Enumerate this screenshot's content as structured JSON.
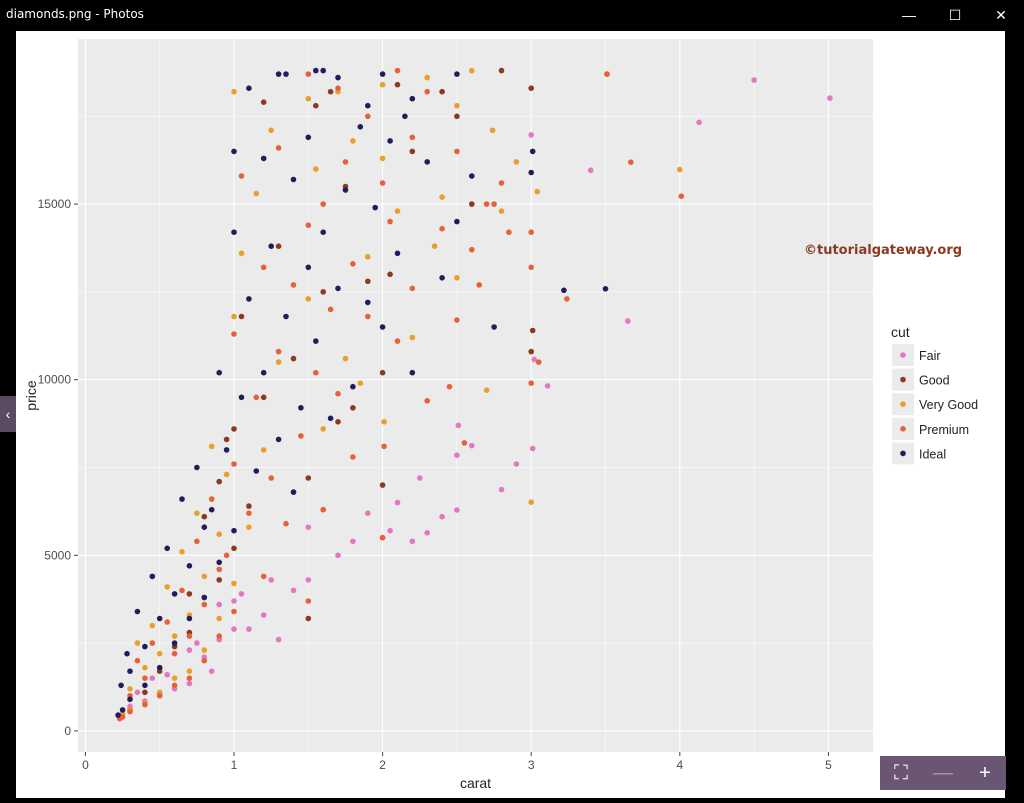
{
  "window": {
    "title": "diamonds.png - Photos",
    "min_glyph": "—",
    "max_glyph": "☐",
    "close_glyph": "✕"
  },
  "nav": {
    "prev_glyph": "‹"
  },
  "viewer": {
    "fit_glyph": "⛶",
    "zoom_out_glyph": "—",
    "zoom_in_glyph": "+"
  },
  "watermark": "©tutorialgateway.org",
  "colors": {
    "panel_bg": "#EBEBEB",
    "grid": "#FFFFFF",
    "Fair": "#E377C2",
    "Good": "#8B3A1E",
    "Very Good": "#E8A02A",
    "Premium": "#E8603A",
    "Ideal": "#221C5E",
    "watermark": "#8B3A1E"
  },
  "chart_data": {
    "type": "scatter",
    "title": "",
    "xlabel": "carat",
    "ylabel": "price",
    "xlim": [
      -0.05,
      5.3
    ],
    "ylim": [
      -600,
      19700
    ],
    "xticks": [
      0,
      1,
      2,
      3,
      4,
      5
    ],
    "xtick_labels": [
      "0",
      "1",
      "2",
      "3",
      "4",
      "5"
    ],
    "yticks": [
      0,
      5000,
      10000,
      15000
    ],
    "ytick_labels": [
      "0",
      "5000",
      "10000",
      "15000"
    ],
    "grid": true,
    "legend": {
      "title": "cut",
      "position": "right",
      "entries": [
        "Fair",
        "Good",
        "Very Good",
        "Premium",
        "Ideal"
      ]
    },
    "series": [
      {
        "name": "Fair",
        "points": [
          [
            5.01,
            18018
          ],
          [
            4.5,
            18531
          ],
          [
            4.13,
            17329
          ],
          [
            3.65,
            11668
          ],
          [
            3.4,
            15964
          ],
          [
            3.11,
            9823
          ],
          [
            3.02,
            10577
          ],
          [
            3.01,
            8040
          ],
          [
            3.0,
            16970
          ],
          [
            2.8,
            6870
          ],
          [
            2.6,
            8120
          ],
          [
            2.5,
            7850
          ],
          [
            2.51,
            8700
          ],
          [
            2.5,
            6290
          ],
          [
            2.3,
            5640
          ],
          [
            2.2,
            5400
          ],
          [
            2.25,
            7200
          ],
          [
            2.1,
            6500
          ],
          [
            2.05,
            5700
          ],
          [
            2.0,
            5500
          ],
          [
            1.9,
            6200
          ],
          [
            1.8,
            5400
          ],
          [
            1.7,
            5000
          ],
          [
            1.6,
            6300
          ],
          [
            1.5,
            4300
          ],
          [
            1.5,
            5800
          ],
          [
            1.4,
            4000
          ],
          [
            1.3,
            2600
          ],
          [
            1.25,
            4300
          ],
          [
            1.2,
            3300
          ],
          [
            1.1,
            2900
          ],
          [
            1.05,
            3900
          ],
          [
            1.0,
            2900
          ],
          [
            1.0,
            3700
          ],
          [
            0.9,
            2600
          ],
          [
            0.9,
            3600
          ],
          [
            0.85,
            1700
          ],
          [
            0.8,
            2100
          ],
          [
            0.75,
            2500
          ],
          [
            0.7,
            1350
          ],
          [
            0.7,
            2300
          ],
          [
            0.6,
            1200
          ],
          [
            0.55,
            1600
          ],
          [
            0.5,
            1050
          ],
          [
            0.45,
            1500
          ],
          [
            0.4,
            850
          ],
          [
            0.35,
            1100
          ],
          [
            0.3,
            700
          ],
          [
            2.9,
            7600
          ],
          [
            2.4,
            6100
          ]
        ]
      },
      {
        "name": "Good",
        "points": [
          [
            3.0,
            18300
          ],
          [
            2.8,
            18800
          ],
          [
            3.01,
            11400
          ],
          [
            3.0,
            10800
          ],
          [
            2.5,
            17500
          ],
          [
            2.4,
            18200
          ],
          [
            2.2,
            16500
          ],
          [
            2.05,
            13000
          ],
          [
            2.0,
            10200
          ],
          [
            2.0,
            7000
          ],
          [
            1.9,
            12800
          ],
          [
            1.8,
            9200
          ],
          [
            1.75,
            15500
          ],
          [
            1.7,
            8800
          ],
          [
            1.6,
            12500
          ],
          [
            1.55,
            17800
          ],
          [
            1.5,
            7200
          ],
          [
            1.5,
            3200
          ],
          [
            1.4,
            10600
          ],
          [
            1.3,
            13800
          ],
          [
            1.2,
            9500
          ],
          [
            1.1,
            6400
          ],
          [
            1.05,
            11800
          ],
          [
            1.0,
            5200
          ],
          [
            1.0,
            8600
          ],
          [
            0.9,
            4300
          ],
          [
            0.9,
            7100
          ],
          [
            0.8,
            3800
          ],
          [
            0.8,
            6100
          ],
          [
            0.7,
            2800
          ],
          [
            0.7,
            3900
          ],
          [
            0.6,
            2400
          ],
          [
            0.5,
            1700
          ],
          [
            0.4,
            1100
          ],
          [
            0.3,
            600
          ],
          [
            1.2,
            17900
          ],
          [
            1.65,
            18200
          ],
          [
            2.1,
            18400
          ],
          [
            2.6,
            15000
          ],
          [
            0.95,
            8300
          ]
        ]
      },
      {
        "name": "Very Good",
        "points": [
          [
            4.0,
            15984
          ],
          [
            3.51,
            18701
          ],
          [
            3.04,
            15354
          ],
          [
            3.0,
            6512
          ],
          [
            2.8,
            14800
          ],
          [
            2.74,
            17100
          ],
          [
            2.5,
            12900
          ],
          [
            2.5,
            17800
          ],
          [
            2.4,
            15200
          ],
          [
            2.3,
            18600
          ],
          [
            2.2,
            11200
          ],
          [
            2.1,
            14800
          ],
          [
            2.01,
            8800
          ],
          [
            2.0,
            16300
          ],
          [
            2.0,
            18400
          ],
          [
            1.9,
            13500
          ],
          [
            1.8,
            16800
          ],
          [
            1.75,
            10600
          ],
          [
            1.7,
            18200
          ],
          [
            1.6,
            8600
          ],
          [
            1.55,
            16000
          ],
          [
            1.5,
            12300
          ],
          [
            1.5,
            18000
          ],
          [
            1.4,
            6800
          ],
          [
            1.3,
            10500
          ],
          [
            1.25,
            17100
          ],
          [
            1.2,
            8000
          ],
          [
            1.1,
            5800
          ],
          [
            1.05,
            13600
          ],
          [
            1.0,
            4200
          ],
          [
            1.0,
            11800
          ],
          [
            1.0,
            18200
          ],
          [
            0.95,
            7300
          ],
          [
            0.9,
            3200
          ],
          [
            0.9,
            5600
          ],
          [
            0.85,
            8100
          ],
          [
            0.8,
            2300
          ],
          [
            0.8,
            4400
          ],
          [
            0.75,
            6200
          ],
          [
            0.7,
            1700
          ],
          [
            0.7,
            3300
          ],
          [
            0.65,
            5100
          ],
          [
            0.6,
            1500
          ],
          [
            0.6,
            2700
          ],
          [
            0.55,
            4100
          ],
          [
            0.5,
            1100
          ],
          [
            0.5,
            2200
          ],
          [
            0.45,
            3000
          ],
          [
            0.4,
            800
          ],
          [
            0.4,
            1800
          ],
          [
            0.35,
            2500
          ],
          [
            0.3,
            600
          ],
          [
            0.3,
            1200
          ],
          [
            0.25,
            500
          ],
          [
            2.9,
            16200
          ],
          [
            2.6,
            18800
          ],
          [
            2.7,
            9700
          ],
          [
            2.35,
            13800
          ],
          [
            1.85,
            9900
          ],
          [
            1.15,
            15300
          ]
        ]
      },
      {
        "name": "Premium",
        "points": [
          [
            4.01,
            15223
          ],
          [
            3.67,
            16193
          ],
          [
            3.51,
            18701
          ],
          [
            3.24,
            12300
          ],
          [
            3.05,
            10500
          ],
          [
            3.0,
            14200
          ],
          [
            3.0,
            9900
          ],
          [
            3.0,
            13200
          ],
          [
            2.8,
            15600
          ],
          [
            2.75,
            15000
          ],
          [
            2.6,
            13700
          ],
          [
            2.5,
            11700
          ],
          [
            2.5,
            16500
          ],
          [
            2.45,
            9800
          ],
          [
            2.4,
            14300
          ],
          [
            2.3,
            18200
          ],
          [
            2.3,
            9400
          ],
          [
            2.2,
            12600
          ],
          [
            2.2,
            16900
          ],
          [
            2.1,
            11100
          ],
          [
            2.1,
            18800
          ],
          [
            2.05,
            14500
          ],
          [
            2.01,
            8100
          ],
          [
            2.0,
            5500
          ],
          [
            2.0,
            15600
          ],
          [
            1.9,
            11800
          ],
          [
            1.9,
            17500
          ],
          [
            1.8,
            7800
          ],
          [
            1.8,
            13300
          ],
          [
            1.75,
            16200
          ],
          [
            1.7,
            9600
          ],
          [
            1.7,
            18300
          ],
          [
            1.65,
            12000
          ],
          [
            1.6,
            6300
          ],
          [
            1.6,
            15000
          ],
          [
            1.55,
            10200
          ],
          [
            1.5,
            3700
          ],
          [
            1.5,
            14400
          ],
          [
            1.5,
            18700
          ],
          [
            1.45,
            8400
          ],
          [
            1.4,
            12700
          ],
          [
            1.35,
            5900
          ],
          [
            1.3,
            10800
          ],
          [
            1.3,
            16600
          ],
          [
            1.25,
            7200
          ],
          [
            1.2,
            4400
          ],
          [
            1.2,
            13200
          ],
          [
            1.15,
            9500
          ],
          [
            1.1,
            6200
          ],
          [
            1.05,
            15800
          ],
          [
            1.0,
            3400
          ],
          [
            1.0,
            7600
          ],
          [
            1.0,
            11300
          ],
          [
            0.95,
            5000
          ],
          [
            0.9,
            2700
          ],
          [
            0.9,
            4600
          ],
          [
            0.85,
            6600
          ],
          [
            0.8,
            2000
          ],
          [
            0.8,
            3600
          ],
          [
            0.75,
            5400
          ],
          [
            0.7,
            1500
          ],
          [
            0.7,
            2700
          ],
          [
            0.65,
            4000
          ],
          [
            0.6,
            1300
          ],
          [
            0.6,
            2200
          ],
          [
            0.55,
            3100
          ],
          [
            0.5,
            1000
          ],
          [
            0.5,
            1800
          ],
          [
            0.45,
            2500
          ],
          [
            0.4,
            750
          ],
          [
            0.4,
            1500
          ],
          [
            0.35,
            2000
          ],
          [
            0.3,
            550
          ],
          [
            0.3,
            1000
          ],
          [
            0.25,
            400
          ],
          [
            0.23,
            350
          ],
          [
            2.7,
            15000
          ],
          [
            2.85,
            14200
          ],
          [
            2.55,
            8200
          ],
          [
            2.65,
            12700
          ]
        ]
      },
      {
        "name": "Ideal",
        "points": [
          [
            3.5,
            12587
          ],
          [
            3.22,
            12545
          ],
          [
            3.01,
            16500
          ],
          [
            3.0,
            15900
          ],
          [
            2.75,
            11500
          ],
          [
            2.5,
            18700
          ],
          [
            2.5,
            14500
          ],
          [
            2.4,
            12900
          ],
          [
            2.3,
            16200
          ],
          [
            2.2,
            10200
          ],
          [
            2.2,
            18000
          ],
          [
            2.1,
            13600
          ],
          [
            2.05,
            16800
          ],
          [
            2.0,
            11500
          ],
          [
            2.0,
            18700
          ],
          [
            1.95,
            14900
          ],
          [
            1.9,
            12200
          ],
          [
            1.85,
            17200
          ],
          [
            1.8,
            9800
          ],
          [
            1.75,
            15400
          ],
          [
            1.7,
            12600
          ],
          [
            1.7,
            18600
          ],
          [
            1.65,
            8900
          ],
          [
            1.6,
            14200
          ],
          [
            1.6,
            18800
          ],
          [
            1.55,
            11100
          ],
          [
            1.5,
            13200
          ],
          [
            1.5,
            16900
          ],
          [
            1.45,
            9200
          ],
          [
            1.4,
            6800
          ],
          [
            1.4,
            15700
          ],
          [
            1.35,
            11800
          ],
          [
            1.3,
            8300
          ],
          [
            1.3,
            18700
          ],
          [
            1.25,
            13800
          ],
          [
            1.2,
            10200
          ],
          [
            1.2,
            16300
          ],
          [
            1.15,
            7400
          ],
          [
            1.1,
            12300
          ],
          [
            1.1,
            18300
          ],
          [
            1.05,
            9500
          ],
          [
            1.0,
            5700
          ],
          [
            1.0,
            14200
          ],
          [
            1.0,
            16500
          ],
          [
            0.95,
            8000
          ],
          [
            0.9,
            4800
          ],
          [
            0.9,
            10200
          ],
          [
            0.85,
            6300
          ],
          [
            0.8,
            3800
          ],
          [
            0.8,
            5800
          ],
          [
            0.75,
            7500
          ],
          [
            0.7,
            3200
          ],
          [
            0.7,
            4700
          ],
          [
            0.65,
            6600
          ],
          [
            0.6,
            2500
          ],
          [
            0.6,
            3900
          ],
          [
            0.55,
            5200
          ],
          [
            0.5,
            1800
          ],
          [
            0.5,
            3200
          ],
          [
            0.45,
            4400
          ],
          [
            0.4,
            1300
          ],
          [
            0.4,
            2400
          ],
          [
            0.35,
            3400
          ],
          [
            0.3,
            900
          ],
          [
            0.3,
            1700
          ],
          [
            0.28,
            2200
          ],
          [
            0.25,
            600
          ],
          [
            0.24,
            1300
          ],
          [
            0.22,
            450
          ],
          [
            1.35,
            18700
          ],
          [
            1.55,
            18800
          ],
          [
            1.9,
            17800
          ],
          [
            2.15,
            17500
          ],
          [
            2.6,
            15800
          ]
        ]
      }
    ]
  }
}
